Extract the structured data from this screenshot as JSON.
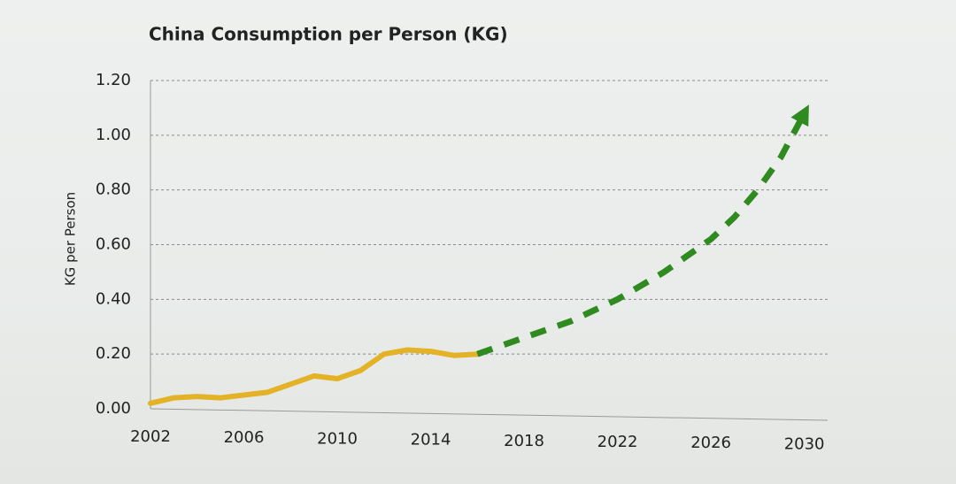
{
  "chart_data": {
    "type": "line",
    "title": "China Consumption per Person (KG)",
    "y_label": "KG per Person",
    "x": [
      2002,
      2003,
      2004,
      2005,
      2006,
      2007,
      2008,
      2009,
      2010,
      2011,
      2012,
      2013,
      2014,
      2015,
      2016,
      2017,
      2018,
      2019,
      2020,
      2021,
      2022,
      2023,
      2024,
      2025,
      2026,
      2027,
      2028,
      2029,
      2030
    ],
    "series": [
      {
        "color": "#e3b226",
        "style": "solid",
        "values": [
          0.02,
          0.04,
          0.045,
          0.04,
          0.05,
          0.06,
          0.09,
          0.12,
          0.11,
          0.14,
          0.2,
          0.215,
          0.21,
          0.195,
          0.2,
          null,
          null,
          null,
          null,
          null,
          null,
          null,
          null,
          null,
          null,
          null,
          null,
          null,
          null
        ]
      },
      {
        "color": "#2f8a1f",
        "style": "dashed",
        "arrow": true,
        "values": [
          null,
          null,
          null,
          null,
          null,
          null,
          null,
          null,
          null,
          null,
          null,
          null,
          null,
          null,
          0.2,
          0.23,
          0.26,
          0.29,
          0.32,
          0.36,
          0.4,
          0.45,
          0.5,
          0.56,
          0.62,
          0.7,
          0.8,
          0.92,
          1.08
        ]
      }
    ],
    "xlim": [
      2002,
      2031
    ],
    "xticks": [
      2002,
      2006,
      2010,
      2014,
      2018,
      2022,
      2026,
      2030
    ],
    "ylim": [
      0,
      1.2
    ],
    "yticks": [
      {
        "value": 0,
        "label": "0.00"
      },
      {
        "value": 0.2,
        "label": "0.20"
      },
      {
        "value": 0.4,
        "label": "0.40"
      },
      {
        "value": 0.6,
        "label": "0.60"
      },
      {
        "value": 0.8,
        "label": "0.80"
      },
      {
        "value": 1.0,
        "label": "1.00"
      },
      {
        "value": 1.2,
        "label": "1.20"
      }
    ],
    "grid": true
  }
}
